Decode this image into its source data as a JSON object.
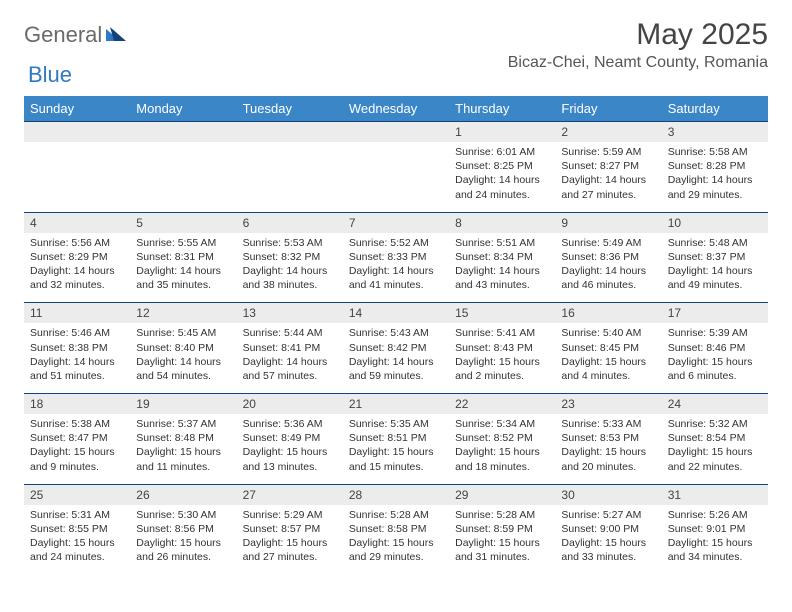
{
  "brand": {
    "part1": "General",
    "part2": "Blue"
  },
  "title": "May 2025",
  "location": "Bicaz-Chei, Neamt County, Romania",
  "colors": {
    "header_bg": "#3b86c7",
    "header_fg": "#ffffff",
    "daynum_bg": "#ececec",
    "row_border": "#14427a",
    "brand_gray": "#6a6a6a",
    "brand_blue": "#2f7ac0"
  },
  "dow": [
    "Sunday",
    "Monday",
    "Tuesday",
    "Wednesday",
    "Thursday",
    "Friday",
    "Saturday"
  ],
  "weeks": [
    {
      "nums": [
        "",
        "",
        "",
        "",
        "1",
        "2",
        "3"
      ],
      "cells": [
        null,
        null,
        null,
        null,
        {
          "sunrise": "Sunrise: 6:01 AM",
          "sunset": "Sunset: 8:25 PM",
          "d1": "Daylight: 14 hours",
          "d2": "and 24 minutes."
        },
        {
          "sunrise": "Sunrise: 5:59 AM",
          "sunset": "Sunset: 8:27 PM",
          "d1": "Daylight: 14 hours",
          "d2": "and 27 minutes."
        },
        {
          "sunrise": "Sunrise: 5:58 AM",
          "sunset": "Sunset: 8:28 PM",
          "d1": "Daylight: 14 hours",
          "d2": "and 29 minutes."
        }
      ]
    },
    {
      "nums": [
        "4",
        "5",
        "6",
        "7",
        "8",
        "9",
        "10"
      ],
      "cells": [
        {
          "sunrise": "Sunrise: 5:56 AM",
          "sunset": "Sunset: 8:29 PM",
          "d1": "Daylight: 14 hours",
          "d2": "and 32 minutes."
        },
        {
          "sunrise": "Sunrise: 5:55 AM",
          "sunset": "Sunset: 8:31 PM",
          "d1": "Daylight: 14 hours",
          "d2": "and 35 minutes."
        },
        {
          "sunrise": "Sunrise: 5:53 AM",
          "sunset": "Sunset: 8:32 PM",
          "d1": "Daylight: 14 hours",
          "d2": "and 38 minutes."
        },
        {
          "sunrise": "Sunrise: 5:52 AM",
          "sunset": "Sunset: 8:33 PM",
          "d1": "Daylight: 14 hours",
          "d2": "and 41 minutes."
        },
        {
          "sunrise": "Sunrise: 5:51 AM",
          "sunset": "Sunset: 8:34 PM",
          "d1": "Daylight: 14 hours",
          "d2": "and 43 minutes."
        },
        {
          "sunrise": "Sunrise: 5:49 AM",
          "sunset": "Sunset: 8:36 PM",
          "d1": "Daylight: 14 hours",
          "d2": "and 46 minutes."
        },
        {
          "sunrise": "Sunrise: 5:48 AM",
          "sunset": "Sunset: 8:37 PM",
          "d1": "Daylight: 14 hours",
          "d2": "and 49 minutes."
        }
      ]
    },
    {
      "nums": [
        "11",
        "12",
        "13",
        "14",
        "15",
        "16",
        "17"
      ],
      "cells": [
        {
          "sunrise": "Sunrise: 5:46 AM",
          "sunset": "Sunset: 8:38 PM",
          "d1": "Daylight: 14 hours",
          "d2": "and 51 minutes."
        },
        {
          "sunrise": "Sunrise: 5:45 AM",
          "sunset": "Sunset: 8:40 PM",
          "d1": "Daylight: 14 hours",
          "d2": "and 54 minutes."
        },
        {
          "sunrise": "Sunrise: 5:44 AM",
          "sunset": "Sunset: 8:41 PM",
          "d1": "Daylight: 14 hours",
          "d2": "and 57 minutes."
        },
        {
          "sunrise": "Sunrise: 5:43 AM",
          "sunset": "Sunset: 8:42 PM",
          "d1": "Daylight: 14 hours",
          "d2": "and 59 minutes."
        },
        {
          "sunrise": "Sunrise: 5:41 AM",
          "sunset": "Sunset: 8:43 PM",
          "d1": "Daylight: 15 hours",
          "d2": "and 2 minutes."
        },
        {
          "sunrise": "Sunrise: 5:40 AM",
          "sunset": "Sunset: 8:45 PM",
          "d1": "Daylight: 15 hours",
          "d2": "and 4 minutes."
        },
        {
          "sunrise": "Sunrise: 5:39 AM",
          "sunset": "Sunset: 8:46 PM",
          "d1": "Daylight: 15 hours",
          "d2": "and 6 minutes."
        }
      ]
    },
    {
      "nums": [
        "18",
        "19",
        "20",
        "21",
        "22",
        "23",
        "24"
      ],
      "cells": [
        {
          "sunrise": "Sunrise: 5:38 AM",
          "sunset": "Sunset: 8:47 PM",
          "d1": "Daylight: 15 hours",
          "d2": "and 9 minutes."
        },
        {
          "sunrise": "Sunrise: 5:37 AM",
          "sunset": "Sunset: 8:48 PM",
          "d1": "Daylight: 15 hours",
          "d2": "and 11 minutes."
        },
        {
          "sunrise": "Sunrise: 5:36 AM",
          "sunset": "Sunset: 8:49 PM",
          "d1": "Daylight: 15 hours",
          "d2": "and 13 minutes."
        },
        {
          "sunrise": "Sunrise: 5:35 AM",
          "sunset": "Sunset: 8:51 PM",
          "d1": "Daylight: 15 hours",
          "d2": "and 15 minutes."
        },
        {
          "sunrise": "Sunrise: 5:34 AM",
          "sunset": "Sunset: 8:52 PM",
          "d1": "Daylight: 15 hours",
          "d2": "and 18 minutes."
        },
        {
          "sunrise": "Sunrise: 5:33 AM",
          "sunset": "Sunset: 8:53 PM",
          "d1": "Daylight: 15 hours",
          "d2": "and 20 minutes."
        },
        {
          "sunrise": "Sunrise: 5:32 AM",
          "sunset": "Sunset: 8:54 PM",
          "d1": "Daylight: 15 hours",
          "d2": "and 22 minutes."
        }
      ]
    },
    {
      "nums": [
        "25",
        "26",
        "27",
        "28",
        "29",
        "30",
        "31"
      ],
      "cells": [
        {
          "sunrise": "Sunrise: 5:31 AM",
          "sunset": "Sunset: 8:55 PM",
          "d1": "Daylight: 15 hours",
          "d2": "and 24 minutes."
        },
        {
          "sunrise": "Sunrise: 5:30 AM",
          "sunset": "Sunset: 8:56 PM",
          "d1": "Daylight: 15 hours",
          "d2": "and 26 minutes."
        },
        {
          "sunrise": "Sunrise: 5:29 AM",
          "sunset": "Sunset: 8:57 PM",
          "d1": "Daylight: 15 hours",
          "d2": "and 27 minutes."
        },
        {
          "sunrise": "Sunrise: 5:28 AM",
          "sunset": "Sunset: 8:58 PM",
          "d1": "Daylight: 15 hours",
          "d2": "and 29 minutes."
        },
        {
          "sunrise": "Sunrise: 5:28 AM",
          "sunset": "Sunset: 8:59 PM",
          "d1": "Daylight: 15 hours",
          "d2": "and 31 minutes."
        },
        {
          "sunrise": "Sunrise: 5:27 AM",
          "sunset": "Sunset: 9:00 PM",
          "d1": "Daylight: 15 hours",
          "d2": "and 33 minutes."
        },
        {
          "sunrise": "Sunrise: 5:26 AM",
          "sunset": "Sunset: 9:01 PM",
          "d1": "Daylight: 15 hours",
          "d2": "and 34 minutes."
        }
      ]
    }
  ]
}
